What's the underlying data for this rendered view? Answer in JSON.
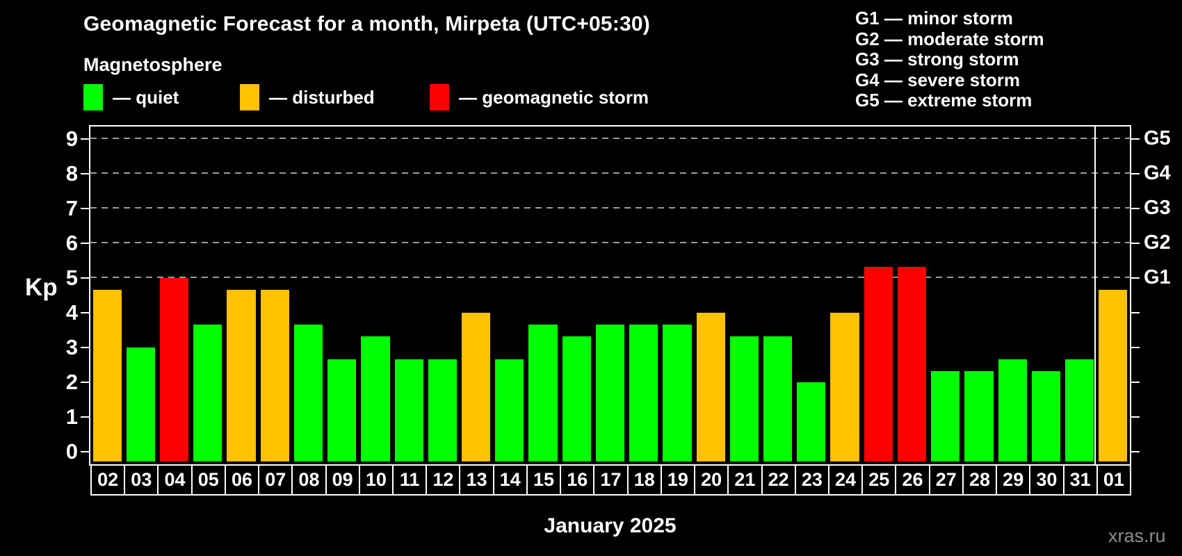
{
  "title": "Geomagnetic Forecast for a month, Mirpeta (UTC+05:30)",
  "subtitle": "Magnetosphere",
  "legend": {
    "items": [
      {
        "key": "quiet",
        "label": "— quiet",
        "color": "#00FF00"
      },
      {
        "key": "disturbed",
        "label": "— disturbed",
        "color": "#FFC100"
      },
      {
        "key": "storm",
        "label": "— geomagnetic storm",
        "color": "#FF0000"
      }
    ]
  },
  "storm_scale_legend": [
    "G1 — minor storm",
    "G2 — moderate storm",
    "G3 — strong storm",
    "G4 — severe storm",
    "G5 — extreme storm"
  ],
  "chart_data": {
    "type": "bar",
    "title": "Geomagnetic Forecast for a month, Mirpeta (UTC+05:30)",
    "ylabel": "Kp",
    "xlabel": "January 2025",
    "ylim": [
      0,
      9
    ],
    "grid": "dashed horizontal lines at Kp 5-9 only",
    "legend_position": "top",
    "yticks": [
      0,
      1,
      2,
      3,
      4,
      5,
      6,
      7,
      8,
      9
    ],
    "right_axis_labels": [
      {
        "kp": 5,
        "text": "G1"
      },
      {
        "kp": 6,
        "text": "G2"
      },
      {
        "kp": 7,
        "text": "G3"
      },
      {
        "kp": 8,
        "text": "G4"
      },
      {
        "kp": 9,
        "text": "G5"
      }
    ],
    "categories": [
      "02",
      "03",
      "04",
      "05",
      "06",
      "07",
      "08",
      "09",
      "10",
      "11",
      "12",
      "13",
      "14",
      "15",
      "16",
      "17",
      "18",
      "19",
      "20",
      "21",
      "22",
      "23",
      "24",
      "25",
      "26",
      "27",
      "28",
      "29",
      "30",
      "31",
      "01"
    ],
    "values": [
      4.67,
      3.0,
      5.0,
      3.67,
      4.67,
      4.67,
      3.67,
      2.67,
      3.33,
      2.67,
      2.67,
      4.0,
      2.67,
      3.67,
      3.33,
      3.67,
      3.67,
      3.67,
      4.0,
      3.33,
      3.33,
      2.0,
      4.0,
      5.33,
      5.33,
      2.33,
      2.33,
      2.67,
      2.33,
      2.67,
      4.67
    ],
    "statuses": [
      "disturbed",
      "quiet",
      "storm",
      "quiet",
      "disturbed",
      "disturbed",
      "quiet",
      "quiet",
      "quiet",
      "quiet",
      "quiet",
      "disturbed",
      "quiet",
      "quiet",
      "quiet",
      "quiet",
      "quiet",
      "quiet",
      "disturbed",
      "quiet",
      "quiet",
      "quiet",
      "disturbed",
      "storm",
      "storm",
      "quiet",
      "quiet",
      "quiet",
      "quiet",
      "quiet",
      "disturbed"
    ],
    "status_colors": {
      "quiet": "#00FF00",
      "disturbed": "#FFC100",
      "storm": "#FF0000"
    },
    "month_divider_after_index": 29
  },
  "footer": {
    "caption": "January 2025",
    "watermark": "xras.ru"
  }
}
